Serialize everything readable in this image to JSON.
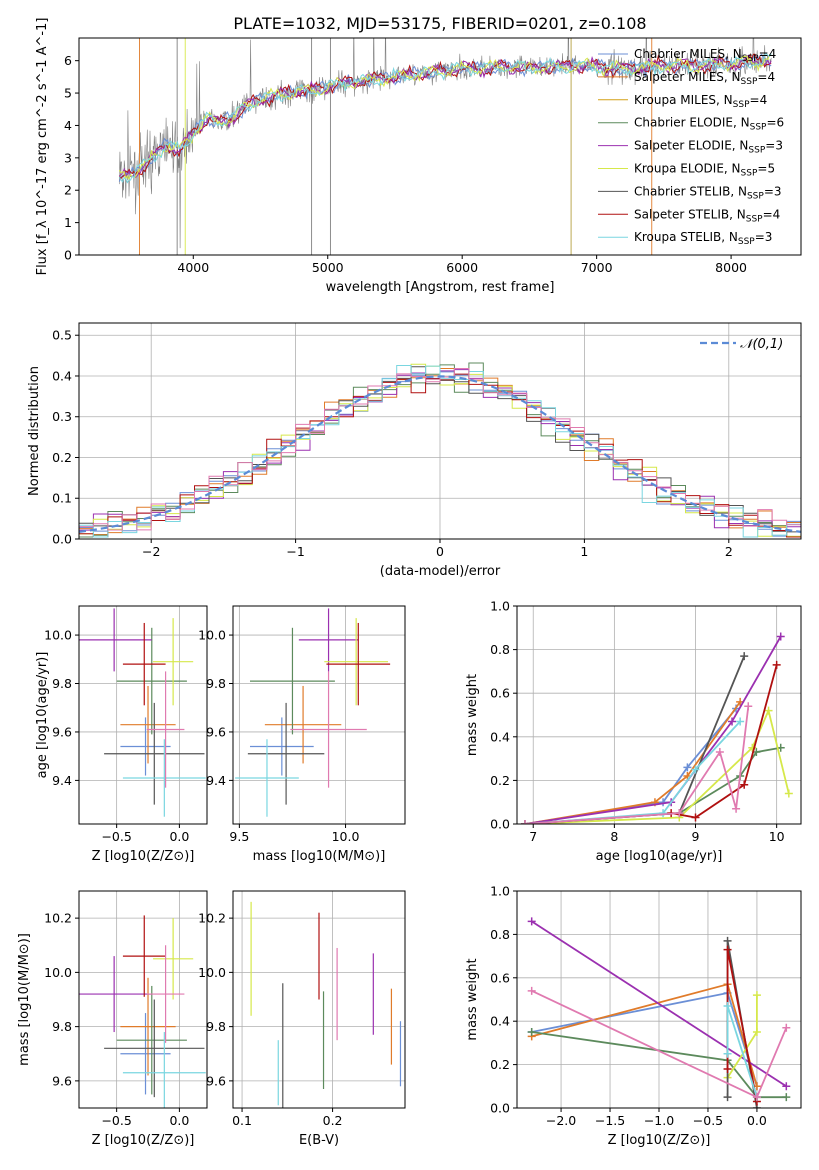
{
  "figure": {
    "title": "PLATE=1032, MJD=53175, FIBERID=0201, z=0.108"
  },
  "colors": {
    "Chabrier MILES": "#6b8fd6",
    "Salpeter MILES": "#e07b2a",
    "Kroupa MILES": "#d4a017",
    "Chabrier ELODIE": "#5c8a5c",
    "Salpeter ELODIE": "#9b30b0",
    "Kroupa ELODIE": "#d6e84a",
    "Chabrier STELIB": "#555555",
    "Salpeter STELIB": "#b01010",
    "Kroupa STELIB": "#7ad6e0",
    "extra": "#e07ab0",
    "data": "#808080",
    "normal": "#5b8bd6"
  },
  "chart_data": [
    {
      "type": "line",
      "id": "spectrum",
      "xlabel": "wavelength [Angstrom, rest frame]",
      "ylabel": "Flux [f_λ 10^-17 erg cm^-2 s^-1 A^-1]",
      "xlim": [
        3150,
        8520
      ],
      "ylim": [
        0,
        6.7
      ],
      "xticks": [
        4000,
        5000,
        6000,
        7000,
        8000
      ],
      "yticks": [
        0,
        1,
        2,
        3,
        4,
        5,
        6
      ],
      "grid": false,
      "legend_position": "right",
      "legend": [
        "Chabrier MILES, N_SSP=4",
        "Salpeter MILES, N_SSP=4",
        "Kroupa MILES, N_SSP=4",
        "Chabrier ELODIE, N_SSP=6",
        "Salpeter ELODIE, N_SSP=3",
        "Kroupa ELODIE, N_SSP=5",
        "Chabrier STELIB, N_SSP=3",
        "Salpeter STELIB, N_SSP=4",
        "Kroupa STELIB, N_SSP=3"
      ],
      "continuum": {
        "x": [
          3450,
          3550,
          3650,
          3700,
          3800,
          3900,
          4000,
          4100,
          4200,
          4300,
          4400,
          4500,
          4700,
          4900,
          5100,
          5300,
          5500,
          5700,
          6000,
          6300,
          6600,
          6900,
          7200,
          7500,
          7800,
          8100,
          8300
        ],
        "y": [
          2.4,
          2.5,
          2.8,
          3.0,
          3.4,
          3.2,
          3.8,
          4.2,
          4.1,
          4.3,
          4.6,
          4.8,
          5.0,
          5.1,
          5.3,
          5.4,
          5.5,
          5.6,
          5.75,
          5.8,
          5.8,
          5.85,
          5.75,
          5.85,
          5.85,
          5.95,
          6.05
        ]
      }
    },
    {
      "type": "line",
      "id": "residuals",
      "xlabel": "(data-model)/error",
      "ylabel": "Normed distribution",
      "xlim": [
        -2.5,
        2.5
      ],
      "ylim": [
        0,
        0.53
      ],
      "xticks": [
        -2,
        -1,
        0,
        1,
        2
      ],
      "yticks": [
        0.0,
        0.1,
        0.2,
        0.3,
        0.4,
        0.5
      ],
      "grid": true,
      "legend": [
        "𝒩(0,1)"
      ],
      "legend_position": "top-right"
    },
    {
      "type": "scatter",
      "id": "age-vs-Z",
      "xlabel": "Z [log10(Z/Z⊙)]",
      "ylabel": "age [log10(age/yr)]",
      "xlim": [
        -0.8,
        0.22
      ],
      "ylim": [
        9.22,
        10.12
      ],
      "xticks": [
        -0.5,
        0.0
      ],
      "yticks": [
        9.4,
        9.6,
        9.8,
        10.0
      ],
      "grid": true
    },
    {
      "type": "scatter",
      "id": "age-vs-mass",
      "xlabel": "mass [log10(M/M⊙)]",
      "ylabel": "",
      "xlim": [
        9.47,
        10.28
      ],
      "ylim": [
        9.22,
        10.12
      ],
      "xticks": [
        9.5,
        10.0
      ],
      "yticks": [
        9.4,
        9.6,
        9.8,
        10.0
      ],
      "grid": true
    },
    {
      "type": "line",
      "id": "massweight-vs-age",
      "xlabel": "age [log10(age/yr)]",
      "ylabel": "mass weight",
      "xlim": [
        6.8,
        10.3
      ],
      "ylim": [
        0,
        1.0
      ],
      "xticks": [
        7,
        8,
        9,
        10
      ],
      "yticks": [
        0.0,
        0.2,
        0.4,
        0.6,
        0.8,
        1.0
      ],
      "grid": true,
      "series": [
        {
          "color": "#6b8fd6",
          "x": [
            6.9,
            8.6,
            8.9,
            9.5
          ],
          "y": [
            0.0,
            0.1,
            0.26,
            0.53
          ]
        },
        {
          "color": "#e07b2a",
          "x": [
            6.9,
            8.5,
            8.9,
            9.55
          ],
          "y": [
            0.0,
            0.1,
            0.22,
            0.56
          ]
        },
        {
          "color": "#5c8a5c",
          "x": [
            6.9,
            8.8,
            9.55,
            9.75,
            10.05
          ],
          "y": [
            0.0,
            0.05,
            0.22,
            0.33,
            0.35
          ]
        },
        {
          "color": "#9b30b0",
          "x": [
            6.9,
            8.7,
            9.45,
            10.05
          ],
          "y": [
            0.0,
            0.1,
            0.47,
            0.86
          ]
        },
        {
          "color": "#d6e84a",
          "x": [
            6.9,
            8.8,
            9.7,
            9.9,
            10.15
          ],
          "y": [
            0.0,
            0.03,
            0.35,
            0.52,
            0.14
          ]
        },
        {
          "color": "#555555",
          "x": [
            6.9,
            8.8,
            9.6
          ],
          "y": [
            0.0,
            0.05,
            0.77
          ]
        },
        {
          "color": "#b01010",
          "x": [
            6.9,
            8.7,
            9.0,
            9.6,
            10.0
          ],
          "y": [
            0.0,
            0.05,
            0.03,
            0.18,
            0.73
          ]
        },
        {
          "color": "#7ad6e0",
          "x": [
            6.9,
            8.6,
            9.0,
            9.55
          ],
          "y": [
            0.0,
            0.05,
            0.25,
            0.47
          ]
        },
        {
          "color": "#e07ab0",
          "x": [
            6.9,
            8.8,
            9.3,
            9.5,
            9.65
          ],
          "y": [
            0.0,
            0.05,
            0.33,
            0.07,
            0.54
          ]
        }
      ]
    },
    {
      "type": "scatter",
      "id": "mass-vs-Z",
      "xlabel": "Z [log10(Z/Z⊙)]",
      "ylabel": "mass [log10(M/M⊙)]",
      "xlim": [
        -0.8,
        0.22
      ],
      "ylim": [
        9.5,
        10.3
      ],
      "xticks": [
        -0.5,
        0.0
      ],
      "yticks": [
        9.6,
        9.8,
        10.0,
        10.2
      ],
      "grid": true
    },
    {
      "type": "scatter",
      "id": "mass-vs-EBV",
      "xlabel": "E(B-V)",
      "ylabel": "",
      "xlim": [
        0.09,
        0.28
      ],
      "ylim": [
        9.5,
        10.3
      ],
      "xticks": [
        0.1,
        0.2
      ],
      "yticks": [
        9.6,
        9.8,
        10.0,
        10.2
      ],
      "grid": true
    },
    {
      "type": "line",
      "id": "massweight-vs-Z",
      "xlabel": "Z [log10(Z/Z⊙)]",
      "ylabel": "mass weight",
      "xlim": [
        -2.45,
        0.45
      ],
      "ylim": [
        0,
        1.0
      ],
      "xticks": [
        -2.0,
        -1.5,
        -1.0,
        -0.5,
        0.0
      ],
      "yticks": [
        0.0,
        0.2,
        0.4,
        0.6,
        0.8,
        1.0
      ],
      "grid": true,
      "series": [
        {
          "color": "#6b8fd6",
          "x": [
            -2.3,
            -0.3,
            0.0
          ],
          "y": [
            0.35,
            0.53,
            0.1
          ]
        },
        {
          "color": "#e07b2a",
          "x": [
            -2.3,
            -0.3,
            0.0
          ],
          "y": [
            0.33,
            0.57,
            0.1
          ]
        },
        {
          "color": "#5c8a5c",
          "x": [
            -2.3,
            -0.3,
            0.0,
            0.3
          ],
          "y": [
            0.35,
            0.22,
            0.05,
            0.05
          ]
        },
        {
          "color": "#9b30b0",
          "x": [
            -2.3,
            0.3
          ],
          "y": [
            0.86,
            0.1
          ]
        },
        {
          "color": "#d6e84a",
          "x": [
            -0.3,
            0.0,
            0.0
          ],
          "y": [
            0.14,
            0.35,
            0.52
          ]
        },
        {
          "color": "#555555",
          "x": [
            -0.3,
            -0.3,
            0.0
          ],
          "y": [
            0.05,
            0.77,
            0.0
          ]
        },
        {
          "color": "#b01010",
          "x": [
            -0.3,
            -0.3,
            0.0
          ],
          "y": [
            0.18,
            0.73,
            0.03
          ]
        },
        {
          "color": "#7ad6e0",
          "x": [
            -0.3,
            -0.3,
            0.0
          ],
          "y": [
            0.25,
            0.47,
            0.05
          ]
        },
        {
          "color": "#e07ab0",
          "x": [
            -2.3,
            0.0,
            0.3
          ],
          "y": [
            0.54,
            0.05,
            0.37
          ]
        }
      ]
    }
  ]
}
